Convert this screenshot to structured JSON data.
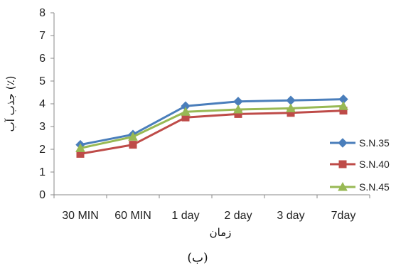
{
  "chart_data": {
    "type": "line",
    "categories": [
      "30 MIN",
      "60 MIN",
      "1 day",
      "2 day",
      "3 day",
      "7day"
    ],
    "series": [
      {
        "name": "S.N.35",
        "color": "#4a7ebb",
        "marker": "diamond",
        "values": [
          2.2,
          2.65,
          3.9,
          4.1,
          4.15,
          4.2
        ]
      },
      {
        "name": "S.N.40",
        "color": "#be4b48",
        "marker": "square",
        "values": [
          1.8,
          2.2,
          3.4,
          3.55,
          3.6,
          3.7
        ]
      },
      {
        "name": "S.N.45",
        "color": "#98b954",
        "marker": "triangle",
        "values": [
          2.05,
          2.55,
          3.65,
          3.75,
          3.8,
          3.9
        ]
      }
    ],
    "y_ticks": [
      "0",
      "1",
      "2",
      "3",
      "4",
      "5",
      "6",
      "7",
      "8"
    ],
    "ylim": [
      0,
      8
    ],
    "xlabel": "زمان",
    "ylabel": "جذب آب (٪)",
    "grid": false,
    "legend_position": "right"
  },
  "caption": "(ب)"
}
